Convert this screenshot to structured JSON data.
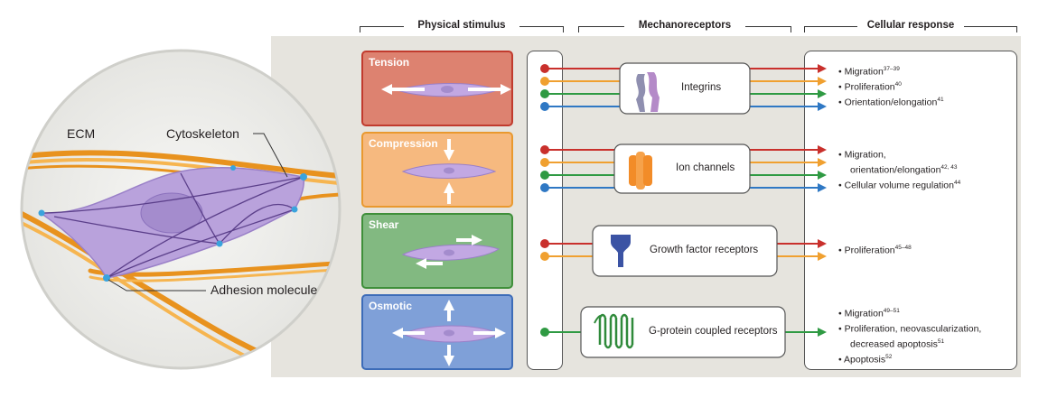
{
  "headers": {
    "physical_stimulus": "Physical stimulus",
    "mechanoreceptors": "Mechanoreceptors",
    "cellular_response": "Cellular response"
  },
  "cell_labels": {
    "ecm": "ECM",
    "cytoskeleton": "Cytoskeleton",
    "adhesion": "Adhesion molecule"
  },
  "stimuli": [
    {
      "label": "Tension",
      "fill": "#dd7f70",
      "border": "#c0392b"
    },
    {
      "label": "Compression",
      "fill": "#f5b57a",
      "border": "#e8962f"
    },
    {
      "label": "Shear",
      "fill": "#7fb77e",
      "border": "#3f8f3a"
    },
    {
      "label": "Osmotic",
      "fill": "#7d9ed6",
      "border": "#3d6cb8"
    }
  ],
  "receptors": [
    {
      "label": "Integrins"
    },
    {
      "label": "Ion channels"
    },
    {
      "label": "Growth factor receptors"
    },
    {
      "label": "G-protein coupled receptors"
    }
  ],
  "responses": {
    "integrins": [
      {
        "text": "Migration",
        "ref": "37–39"
      },
      {
        "text": "Proliferation",
        "ref": "40"
      },
      {
        "text": "Orientation/elongation",
        "ref": "41"
      }
    ],
    "ion_channels": [
      {
        "text": "Migration,",
        "ref": ""
      },
      {
        "text": "orientation/elongation",
        "ref": "42, 43"
      },
      {
        "text": "Cellular volume regulation",
        "ref": "44"
      }
    ],
    "growth_factor": [
      {
        "text": "Proliferation",
        "ref": "45–48"
      }
    ],
    "gpcr": [
      {
        "text": "Migration",
        "ref": "49–51"
      },
      {
        "text": "Proliferation, neovascularization,",
        "ref": ""
      },
      {
        "text": "decreased apoptosis",
        "ref": "51"
      },
      {
        "text": "Apoptosis",
        "ref": "52"
      }
    ]
  },
  "colors": {
    "red": "#c9302c",
    "orange": "#f0a030",
    "green": "#2f9a43",
    "blue": "#2f78c4",
    "cell": "#b49ad6",
    "ecm": "#f2a634",
    "adhesion": "#3aa3dd"
  }
}
